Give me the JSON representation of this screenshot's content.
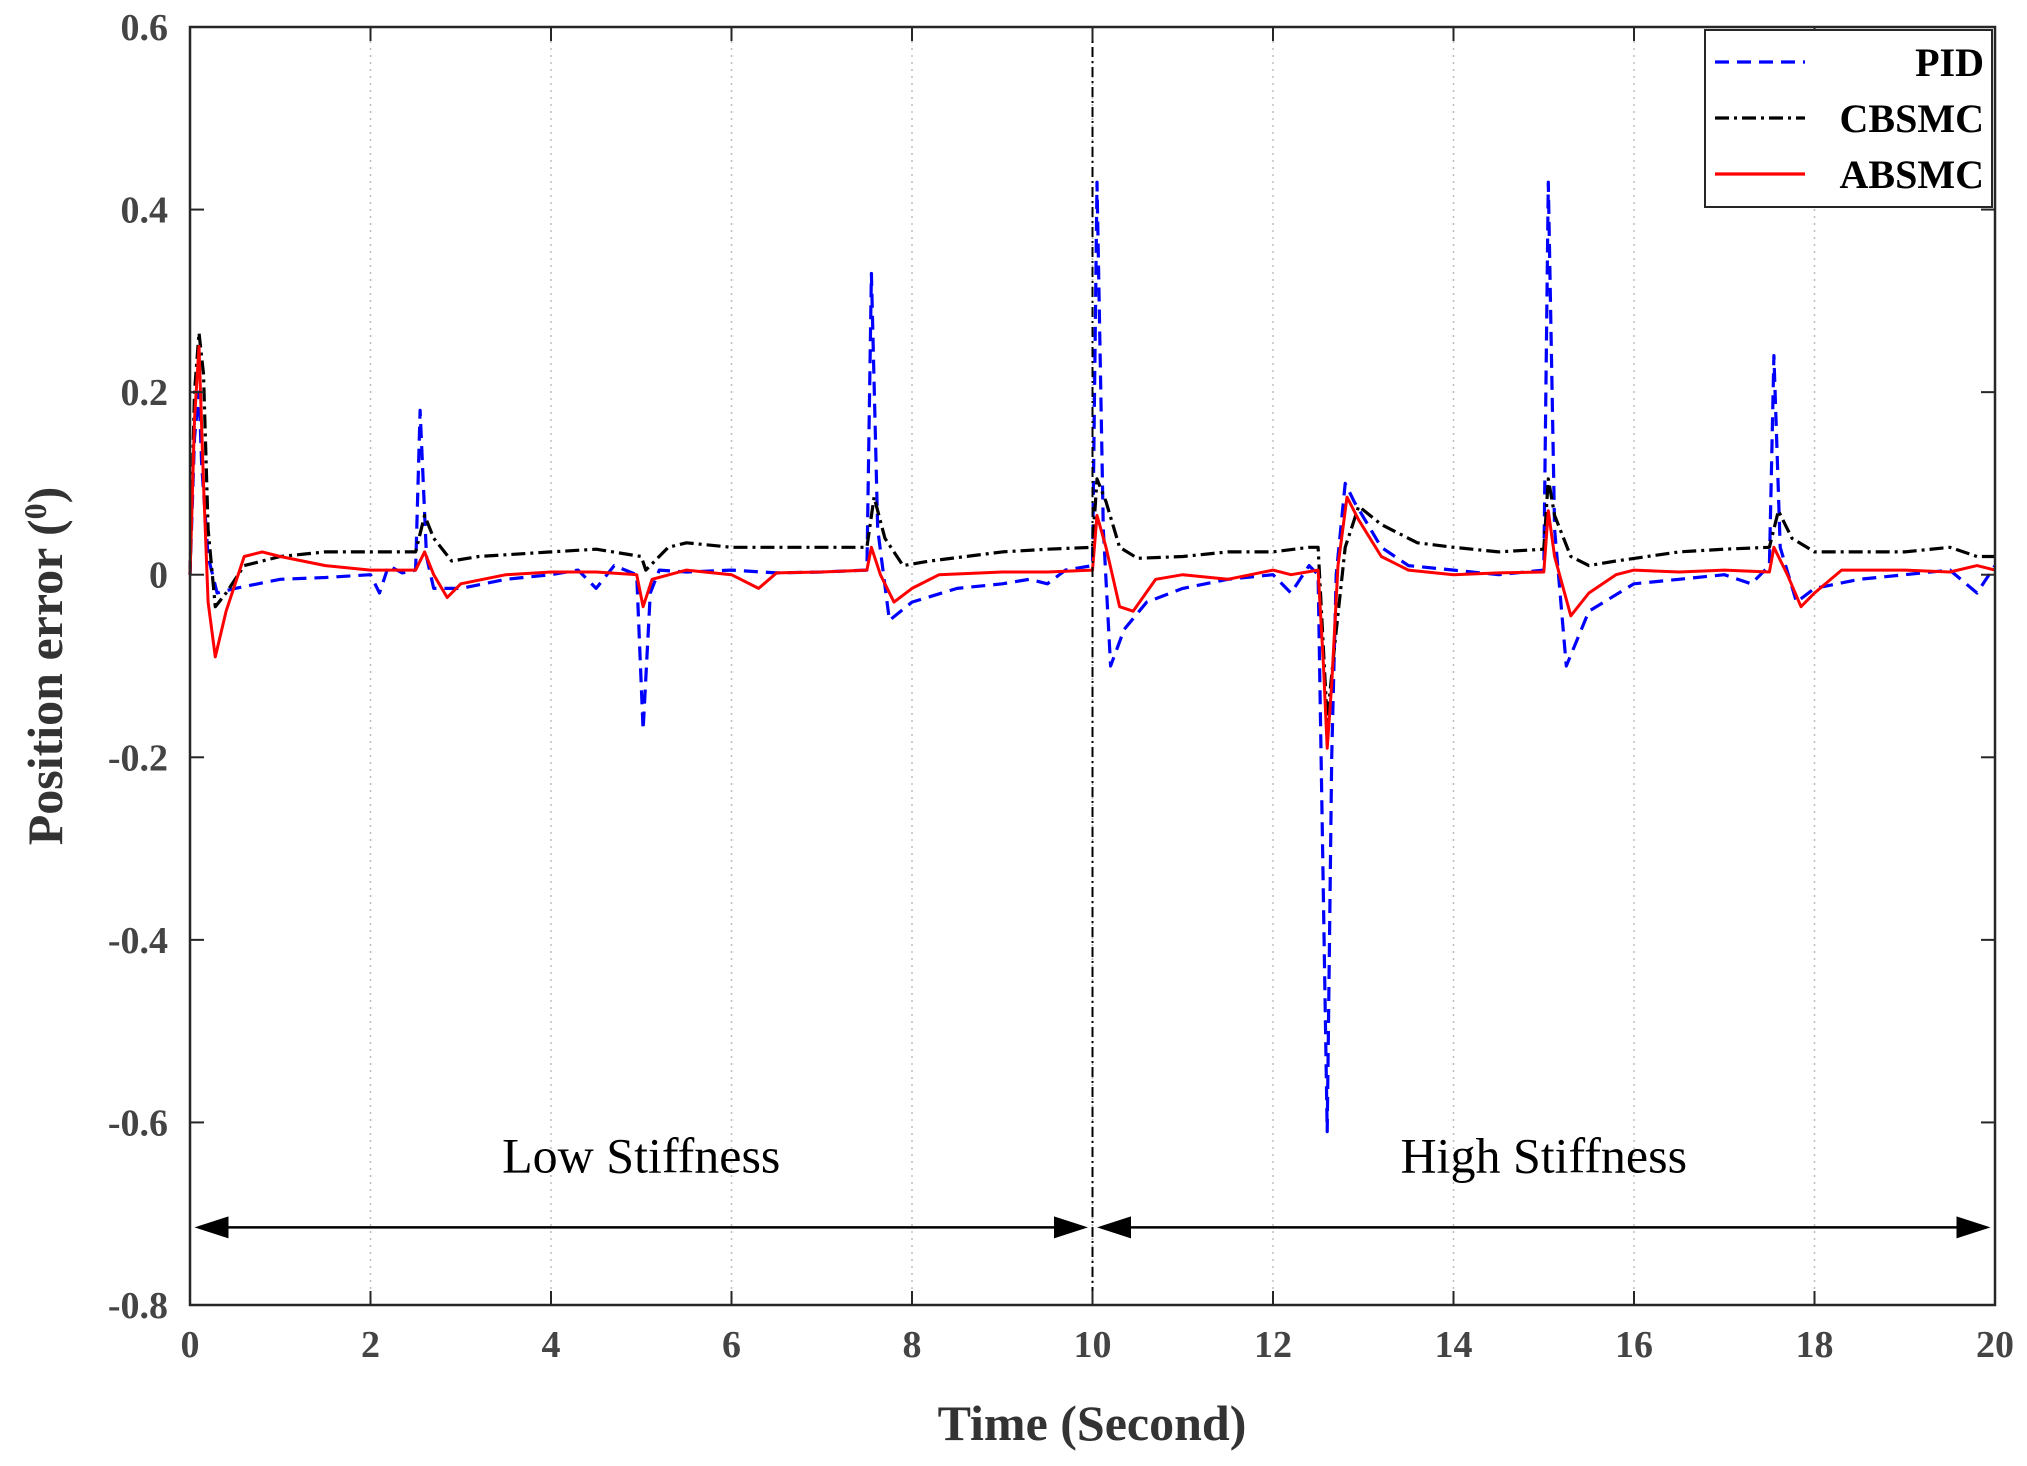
{
  "chart_data": {
    "type": "line",
    "xlabel": "Time (Second)",
    "ylabel_main": "Position error (",
    "ylabel_sup": "0",
    "ylabel_close": ")",
    "xlim": [
      0,
      20
    ],
    "ylim": [
      -0.8,
      0.6
    ],
    "xticks": [
      0,
      2,
      4,
      6,
      8,
      10,
      12,
      14,
      16,
      18,
      20
    ],
    "xtick_labels": [
      "0",
      "2",
      "4",
      "6",
      "8",
      "10",
      "12",
      "14",
      "16",
      "18",
      "20"
    ],
    "yticks": [
      -0.8,
      -0.6,
      -0.4,
      -0.2,
      0,
      0.2,
      0.4,
      0.6
    ],
    "ytick_labels": [
      "-0.8",
      "-0.6",
      "-0.4",
      "-0.2",
      "0",
      "0.2",
      "0.4",
      "0.6"
    ],
    "grid": "vertical dotted",
    "legend_position": "top-right",
    "divider_x": 10,
    "annotations": [
      {
        "text": "Low Stiffness",
        "x": 5,
        "y": -0.655
      },
      {
        "text": "High Stiffness",
        "x": 15,
        "y": -0.655
      }
    ],
    "arrows": [
      {
        "x0": 0.05,
        "x1": 9.95,
        "y": -0.715
      },
      {
        "x0": 10.05,
        "x1": 19.95,
        "y": -0.715
      }
    ],
    "series": [
      {
        "name": "PID",
        "color": "#0000ff",
        "style": "dashed",
        "points": [
          [
            0,
            0
          ],
          [
            0.05,
            0.15
          ],
          [
            0.1,
            0.2
          ],
          [
            0.13,
            0.12
          ],
          [
            0.2,
            0.02
          ],
          [
            0.3,
            -0.02
          ],
          [
            0.5,
            -0.015
          ],
          [
            1,
            -0.005
          ],
          [
            1.5,
            -0.003
          ],
          [
            2,
            0
          ],
          [
            2.1,
            -0.02
          ],
          [
            2.2,
            0.01
          ],
          [
            2.35,
            0.002
          ],
          [
            2.5,
            0.005
          ],
          [
            2.55,
            0.18
          ],
          [
            2.62,
            0.02
          ],
          [
            2.7,
            -0.015
          ],
          [
            3,
            -0.015
          ],
          [
            3.5,
            -0.005
          ],
          [
            4,
            0
          ],
          [
            4.3,
            0.005
          ],
          [
            4.5,
            -0.015
          ],
          [
            4.7,
            0.01
          ],
          [
            4.95,
            0
          ],
          [
            5.02,
            -0.17
          ],
          [
            5.1,
            -0.02
          ],
          [
            5.2,
            0.005
          ],
          [
            5.5,
            0.003
          ],
          [
            6,
            0.005
          ],
          [
            6.5,
            0.002
          ],
          [
            7,
            0.003
          ],
          [
            7.5,
            0.005
          ],
          [
            7.55,
            0.33
          ],
          [
            7.62,
            0.05
          ],
          [
            7.75,
            -0.05
          ],
          [
            8,
            -0.03
          ],
          [
            8.5,
            -0.015
          ],
          [
            9,
            -0.01
          ],
          [
            9.3,
            -0.005
          ],
          [
            9.5,
            -0.01
          ],
          [
            9.7,
            0.005
          ],
          [
            10,
            0.01
          ],
          [
            10.05,
            0.43
          ],
          [
            10.12,
            0.05
          ],
          [
            10.2,
            -0.1
          ],
          [
            10.35,
            -0.06
          ],
          [
            10.6,
            -0.03
          ],
          [
            11,
            -0.015
          ],
          [
            11.5,
            -0.005
          ],
          [
            12,
            0
          ],
          [
            12.2,
            -0.02
          ],
          [
            12.4,
            0.01
          ],
          [
            12.5,
            0
          ],
          [
            12.55,
            -0.3
          ],
          [
            12.6,
            -0.61
          ],
          [
            12.65,
            -0.2
          ],
          [
            12.7,
            0
          ],
          [
            12.8,
            0.1
          ],
          [
            12.9,
            0.08
          ],
          [
            13.2,
            0.03
          ],
          [
            13.5,
            0.01
          ],
          [
            14,
            0.005
          ],
          [
            14.5,
            0
          ],
          [
            15,
            0.005
          ],
          [
            15.05,
            0.43
          ],
          [
            15.12,
            0.05
          ],
          [
            15.25,
            -0.1
          ],
          [
            15.5,
            -0.04
          ],
          [
            16,
            -0.01
          ],
          [
            16.5,
            -0.005
          ],
          [
            17,
            0
          ],
          [
            17.3,
            -0.01
          ],
          [
            17.5,
            0.01
          ],
          [
            17.55,
            0.24
          ],
          [
            17.62,
            0.03
          ],
          [
            17.8,
            -0.03
          ],
          [
            18,
            -0.015
          ],
          [
            18.5,
            -0.005
          ],
          [
            19,
            0
          ],
          [
            19.5,
            0.005
          ],
          [
            19.8,
            -0.02
          ],
          [
            20,
            0.01
          ]
        ]
      },
      {
        "name": "CBSMC",
        "color": "#000000",
        "style": "dashdot",
        "points": [
          [
            0,
            0
          ],
          [
            0.05,
            0.2
          ],
          [
            0.1,
            0.265
          ],
          [
            0.15,
            0.22
          ],
          [
            0.2,
            0.05
          ],
          [
            0.28,
            -0.035
          ],
          [
            0.4,
            -0.02
          ],
          [
            0.6,
            0.01
          ],
          [
            1,
            0.02
          ],
          [
            1.5,
            0.025
          ],
          [
            2,
            0.025
          ],
          [
            2.5,
            0.025
          ],
          [
            2.6,
            0.065
          ],
          [
            2.7,
            0.04
          ],
          [
            2.9,
            0.015
          ],
          [
            3.2,
            0.02
          ],
          [
            4,
            0.025
          ],
          [
            4.5,
            0.028
          ],
          [
            5,
            0.02
          ],
          [
            5.05,
            0.005
          ],
          [
            5.3,
            0.03
          ],
          [
            5.5,
            0.035
          ],
          [
            6,
            0.03
          ],
          [
            7,
            0.03
          ],
          [
            7.5,
            0.03
          ],
          [
            7.58,
            0.085
          ],
          [
            7.7,
            0.04
          ],
          [
            7.9,
            0.01
          ],
          [
            8.2,
            0.015
          ],
          [
            9,
            0.025
          ],
          [
            9.5,
            0.028
          ],
          [
            10,
            0.03
          ],
          [
            10.05,
            0.105
          ],
          [
            10.15,
            0.08
          ],
          [
            10.3,
            0.03
          ],
          [
            10.5,
            0.018
          ],
          [
            11,
            0.02
          ],
          [
            11.5,
            0.025
          ],
          [
            12,
            0.025
          ],
          [
            12.4,
            0.03
          ],
          [
            12.5,
            0.03
          ],
          [
            12.6,
            -0.16
          ],
          [
            12.68,
            -0.08
          ],
          [
            12.8,
            0.03
          ],
          [
            12.95,
            0.075
          ],
          [
            13.2,
            0.055
          ],
          [
            13.6,
            0.035
          ],
          [
            14,
            0.03
          ],
          [
            14.5,
            0.025
          ],
          [
            15,
            0.028
          ],
          [
            15.05,
            0.105
          ],
          [
            15.12,
            0.065
          ],
          [
            15.3,
            0.02
          ],
          [
            15.5,
            0.01
          ],
          [
            15.8,
            0.015
          ],
          [
            16.5,
            0.025
          ],
          [
            17,
            0.028
          ],
          [
            17.5,
            0.03
          ],
          [
            17.6,
            0.07
          ],
          [
            17.75,
            0.04
          ],
          [
            18,
            0.025
          ],
          [
            18.5,
            0.025
          ],
          [
            19,
            0.025
          ],
          [
            19.5,
            0.03
          ],
          [
            19.8,
            0.02
          ],
          [
            20,
            0.02
          ]
        ]
      },
      {
        "name": "ABSMC",
        "color": "#ff0000",
        "style": "solid",
        "points": [
          [
            0,
            0
          ],
          [
            0.05,
            0.17
          ],
          [
            0.1,
            0.25
          ],
          [
            0.15,
            0.1
          ],
          [
            0.2,
            -0.03
          ],
          [
            0.28,
            -0.09
          ],
          [
            0.4,
            -0.04
          ],
          [
            0.6,
            0.02
          ],
          [
            0.8,
            0.025
          ],
          [
            1,
            0.02
          ],
          [
            1.5,
            0.01
          ],
          [
            2,
            0.005
          ],
          [
            2.5,
            0.005
          ],
          [
            2.6,
            0.025
          ],
          [
            2.7,
            0
          ],
          [
            2.85,
            -0.025
          ],
          [
            3,
            -0.01
          ],
          [
            3.5,
            0
          ],
          [
            4,
            0.003
          ],
          [
            4.5,
            0.003
          ],
          [
            4.95,
            0
          ],
          [
            5.02,
            -0.035
          ],
          [
            5.12,
            -0.005
          ],
          [
            5.5,
            0.005
          ],
          [
            6,
            0
          ],
          [
            6.3,
            -0.015
          ],
          [
            6.5,
            0.002
          ],
          [
            7,
            0.003
          ],
          [
            7.5,
            0.005
          ],
          [
            7.55,
            0.03
          ],
          [
            7.65,
            0
          ],
          [
            7.8,
            -0.03
          ],
          [
            8,
            -0.015
          ],
          [
            8.3,
            0
          ],
          [
            9,
            0.003
          ],
          [
            9.5,
            0.003
          ],
          [
            10,
            0.005
          ],
          [
            10.05,
            0.065
          ],
          [
            10.15,
            0.03
          ],
          [
            10.3,
            -0.035
          ],
          [
            10.45,
            -0.04
          ],
          [
            10.7,
            -0.005
          ],
          [
            11,
            0
          ],
          [
            11.5,
            -0.005
          ],
          [
            12,
            0.005
          ],
          [
            12.2,
            0
          ],
          [
            12.5,
            0.005
          ],
          [
            12.56,
            -0.1
          ],
          [
            12.6,
            -0.19
          ],
          [
            12.65,
            -0.12
          ],
          [
            12.72,
            0.01
          ],
          [
            12.82,
            0.085
          ],
          [
            12.95,
            0.06
          ],
          [
            13.2,
            0.02
          ],
          [
            13.5,
            0.005
          ],
          [
            14,
            0
          ],
          [
            14.5,
            0.002
          ],
          [
            15,
            0.003
          ],
          [
            15.05,
            0.07
          ],
          [
            15.12,
            0.02
          ],
          [
            15.3,
            -0.045
          ],
          [
            15.5,
            -0.02
          ],
          [
            15.8,
            0
          ],
          [
            16,
            0.005
          ],
          [
            16.5,
            0.003
          ],
          [
            17,
            0.005
          ],
          [
            17.5,
            0.003
          ],
          [
            17.55,
            0.03
          ],
          [
            17.7,
            0
          ],
          [
            17.85,
            -0.035
          ],
          [
            18,
            -0.02
          ],
          [
            18.3,
            0.005
          ],
          [
            19,
            0.005
          ],
          [
            19.5,
            0.003
          ],
          [
            19.8,
            0.01
          ],
          [
            20,
            0.005
          ]
        ]
      }
    ]
  }
}
